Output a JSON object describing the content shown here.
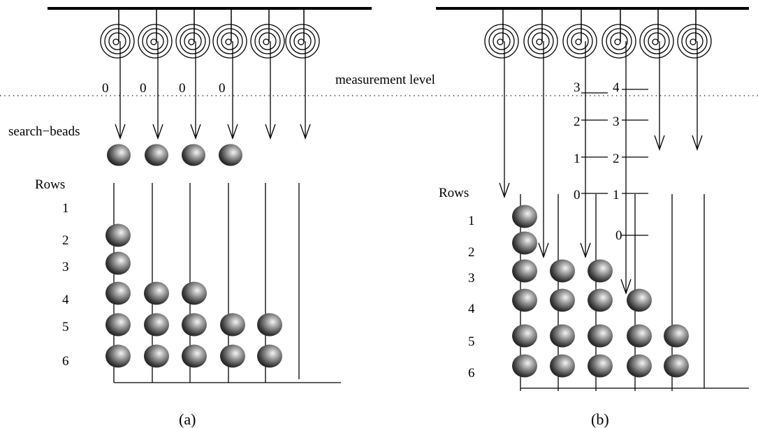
{
  "measurement_level_label": "measurement level",
  "search_beads_label": "search−beads",
  "rows_label": "Rows",
  "row_numbers": [
    "1",
    "2",
    "3",
    "4",
    "5",
    "6"
  ],
  "zero_label": "0",
  "panel_a": {
    "caption": "(a)",
    "level_readings": [
      "0",
      "0",
      "0",
      "0"
    ],
    "beads_per_column": [
      5,
      3,
      3,
      2,
      2,
      0
    ]
  },
  "panel_b": {
    "caption": "(b)",
    "scale_a_ticks": [
      "3",
      "2",
      "1",
      "0"
    ],
    "scale_b_ticks": [
      "4",
      "3",
      "2",
      "1",
      "0"
    ],
    "beads_per_column": [
      6,
      4,
      4,
      3,
      2,
      0
    ]
  },
  "colors": {
    "ink": "#000000",
    "bead_light": "#f4f4f4",
    "bead_dark": "#141414"
  }
}
